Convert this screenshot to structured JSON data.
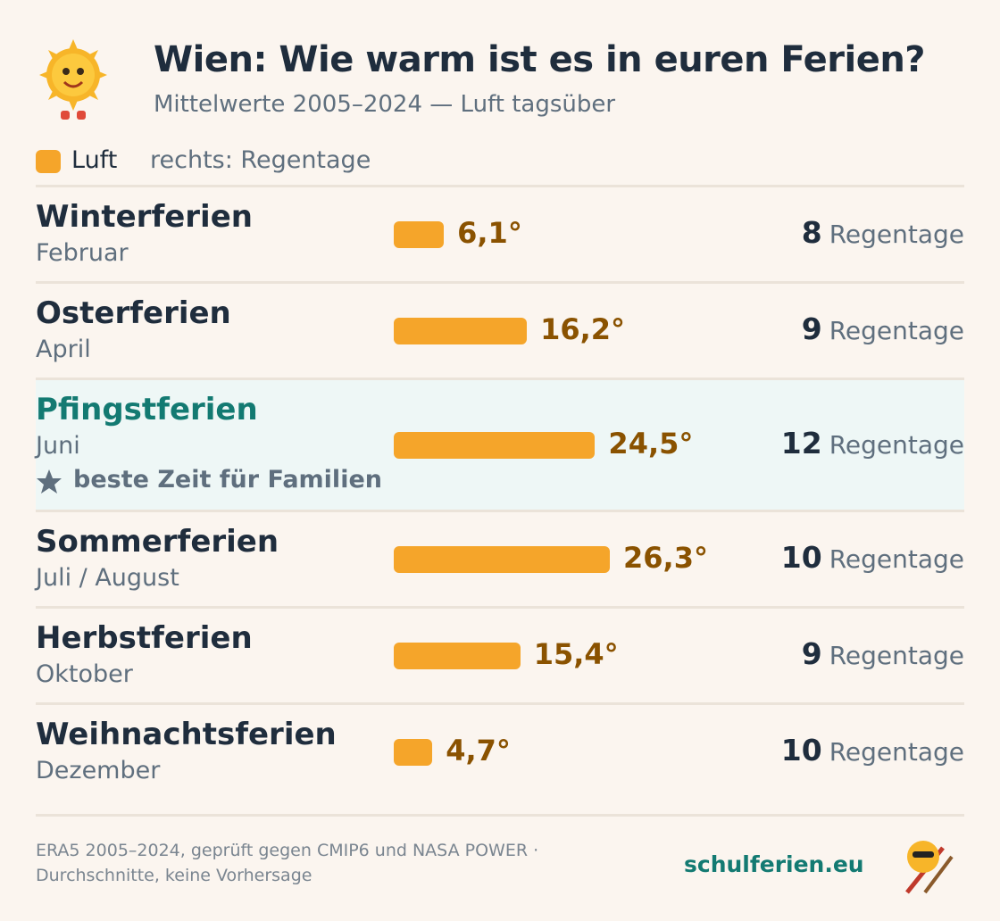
{
  "chart_data": {
    "type": "bar",
    "title": "Wien: Wie warm ist es in euren Ferien?",
    "subtitle": "Mittelwerte 2005–2024 — Luft tagsüber",
    "legend": {
      "name": "Luft",
      "note": "rechts: Regentage"
    },
    "categories": [
      "Winterferien",
      "Osterferien",
      "Pfingstferien",
      "Sommerferien",
      "Herbstferien",
      "Weihnachtsferien"
    ],
    "periods": [
      "Februar",
      "April",
      "Juni",
      "Juli / August",
      "Oktober",
      "Dezember"
    ],
    "notes": [
      null,
      null,
      "beste Zeit für Familien",
      null,
      null,
      null
    ],
    "values": [
      6.1,
      16.2,
      24.5,
      26.3,
      15.4,
      4.7
    ],
    "value_labels": [
      "6,1°",
      "16,2°",
      "24,5°",
      "26,3°",
      "15,4°",
      "4,7°"
    ],
    "color": "#f5a52a",
    "rain_days": [
      8,
      9,
      12,
      10,
      9,
      10
    ],
    "rain_label": "Regentage",
    "footer": [
      "ERA5 2005–2024, geprüft gegen CMIP6 und NASA POWER ·",
      "Durchschnitte, keine Vorhersage"
    ],
    "brand": "schulferien.eu"
  }
}
